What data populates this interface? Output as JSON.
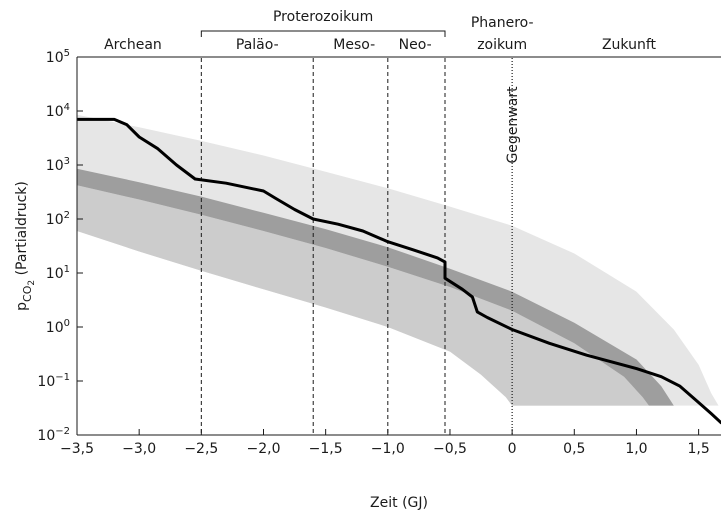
{
  "chart_data": {
    "type": "line",
    "xlabel": "Zeit (GJ)",
    "ylabel": {
      "base": "p",
      "sub_pre": "CO",
      "sub_num": "2",
      "rest": " (Partialdruck)"
    },
    "y_scale": "log",
    "xlim": [
      -3.5,
      1.68
    ],
    "ylim": [
      0.01,
      100000
    ],
    "grid": false,
    "legend": "none",
    "x_ticks": [
      {
        "value": -3.5,
        "label": "−3,5"
      },
      {
        "value": -3.0,
        "label": "−3,0"
      },
      {
        "value": -2.5,
        "label": "−2,5"
      },
      {
        "value": -2.0,
        "label": "−2,0"
      },
      {
        "value": -1.5,
        "label": "−1,5"
      },
      {
        "value": -1.0,
        "label": "−1,0"
      },
      {
        "value": -0.5,
        "label": "−0,5"
      },
      {
        "value": 0.0,
        "label": "0"
      },
      {
        "value": 0.5,
        "label": "0,5"
      },
      {
        "value": 1.0,
        "label": "1,0"
      },
      {
        "value": 1.5,
        "label": "1,5"
      }
    ],
    "y_ticks": [
      {
        "value": 0.01,
        "base": "10",
        "exp": "−2"
      },
      {
        "value": 0.1,
        "base": "10",
        "exp": "−1"
      },
      {
        "value": 1,
        "base": "10",
        "exp": "0"
      },
      {
        "value": 10,
        "base": "10",
        "exp": "1"
      },
      {
        "value": 100,
        "base": "10",
        "exp": "2"
      },
      {
        "value": 1000,
        "base": "10",
        "exp": "3"
      },
      {
        "value": 10000,
        "base": "10",
        "exp": "4"
      },
      {
        "value": 100000,
        "base": "10",
        "exp": "5"
      }
    ],
    "eras": [
      {
        "label": "Archean",
        "x": -3.05,
        "row": "bottom"
      },
      {
        "label": "Paläo-",
        "x": -2.05,
        "row": "bottom"
      },
      {
        "label": "Meso-",
        "x": -1.27,
        "row": "bottom"
      },
      {
        "label": "Neo-",
        "x": -0.78,
        "row": "bottom"
      },
      {
        "label": "Phanero-",
        "x": -0.08,
        "row": "top"
      },
      {
        "label": "zoikum",
        "x": -0.08,
        "row": "bottom"
      },
      {
        "label": "Zukunft",
        "x": 0.94,
        "row": "bottom"
      }
    ],
    "supergroup": {
      "label": "Proterozoikum",
      "from": -2.5,
      "to": -0.54
    },
    "boundaries": [
      -2.5,
      -1.6,
      -1.0,
      -0.54
    ],
    "present": {
      "x": 0.0,
      "label": "Gegenwart"
    },
    "bands": [
      {
        "role": "outer",
        "color": "#e6e6e6",
        "upper": [
          [
            -3.5,
            8500
          ],
          [
            -3.0,
            5000
          ],
          [
            -2.5,
            2800
          ],
          [
            -2.0,
            1500
          ],
          [
            -1.5,
            750
          ],
          [
            -1.0,
            370
          ],
          [
            -0.5,
            170
          ],
          [
            0.0,
            75
          ],
          [
            0.5,
            23
          ],
          [
            1.0,
            4.5
          ],
          [
            1.3,
            0.9
          ],
          [
            1.5,
            0.2
          ],
          [
            1.6,
            0.06
          ],
          [
            1.66,
            0.035
          ]
        ],
        "lower": [
          [
            -3.5,
            60
          ],
          [
            -3.0,
            25
          ],
          [
            -2.5,
            11
          ],
          [
            -2.0,
            5
          ],
          [
            -1.5,
            2.3
          ],
          [
            -1.0,
            1.0
          ],
          [
            -0.5,
            0.35
          ],
          [
            -0.25,
            0.13
          ],
          [
            -0.05,
            0.05
          ],
          [
            0.0,
            0.035
          ],
          [
            1.66,
            0.035
          ]
        ]
      },
      {
        "role": "mid",
        "color": "#cccccc",
        "upper": [
          [
            -3.5,
            420
          ],
          [
            -3.0,
            230
          ],
          [
            -2.5,
            120
          ],
          [
            -2.0,
            60
          ],
          [
            -1.5,
            29
          ],
          [
            -1.0,
            13
          ],
          [
            -0.5,
            5.5
          ],
          [
            0.0,
            2.0
          ],
          [
            0.5,
            0.5
          ],
          [
            0.9,
            0.12
          ],
          [
            1.05,
            0.05
          ],
          [
            1.1,
            0.035
          ]
        ],
        "lower": [
          [
            -3.5,
            60
          ],
          [
            -3.0,
            25
          ],
          [
            -2.5,
            11
          ],
          [
            -2.0,
            5
          ],
          [
            -1.5,
            2.3
          ],
          [
            -1.0,
            1.0
          ],
          [
            -0.5,
            0.35
          ],
          [
            -0.25,
            0.13
          ],
          [
            -0.05,
            0.05
          ],
          [
            0.0,
            0.035
          ],
          [
            1.1,
            0.035
          ]
        ]
      },
      {
        "role": "inner",
        "color": "#9e9e9e",
        "upper": [
          [
            -3.5,
            850
          ],
          [
            -3.0,
            480
          ],
          [
            -2.5,
            260
          ],
          [
            -2.0,
            130
          ],
          [
            -1.5,
            65
          ],
          [
            -1.0,
            30
          ],
          [
            -0.5,
            12
          ],
          [
            0.0,
            4.5
          ],
          [
            0.5,
            1.2
          ],
          [
            1.0,
            0.25
          ],
          [
            1.2,
            0.08
          ],
          [
            1.3,
            0.035
          ]
        ],
        "lower": [
          [
            -3.5,
            420
          ],
          [
            -3.0,
            230
          ],
          [
            -2.5,
            120
          ],
          [
            -2.0,
            60
          ],
          [
            -1.5,
            29
          ],
          [
            -1.0,
            13
          ],
          [
            -0.5,
            5.5
          ],
          [
            0.0,
            2.0
          ],
          [
            0.5,
            0.5
          ],
          [
            0.9,
            0.12
          ],
          [
            1.05,
            0.05
          ],
          [
            1.1,
            0.035
          ]
        ]
      }
    ],
    "series": [
      {
        "color": "#000000",
        "points": [
          [
            -3.5,
            7000
          ],
          [
            -3.2,
            7000
          ],
          [
            -3.1,
            5600
          ],
          [
            -3.0,
            3300
          ],
          [
            -2.85,
            2000
          ],
          [
            -2.7,
            1000
          ],
          [
            -2.55,
            550
          ],
          [
            -2.3,
            460
          ],
          [
            -2.0,
            330
          ],
          [
            -1.9,
            240
          ],
          [
            -1.75,
            150
          ],
          [
            -1.6,
            100
          ],
          [
            -1.4,
            80
          ],
          [
            -1.2,
            60
          ],
          [
            -1.0,
            38
          ],
          [
            -0.8,
            27
          ],
          [
            -0.6,
            19
          ],
          [
            -0.54,
            16
          ],
          [
            -0.54,
            8
          ],
          [
            -0.4,
            5
          ],
          [
            -0.32,
            3.6
          ],
          [
            -0.28,
            1.9
          ],
          [
            -0.2,
            1.5
          ],
          [
            0.0,
            0.9
          ],
          [
            0.3,
            0.5
          ],
          [
            0.6,
            0.3
          ],
          [
            1.0,
            0.17
          ],
          [
            1.2,
            0.12
          ],
          [
            1.35,
            0.08
          ],
          [
            1.5,
            0.04
          ],
          [
            1.6,
            0.025
          ],
          [
            1.68,
            0.017
          ]
        ]
      }
    ]
  }
}
